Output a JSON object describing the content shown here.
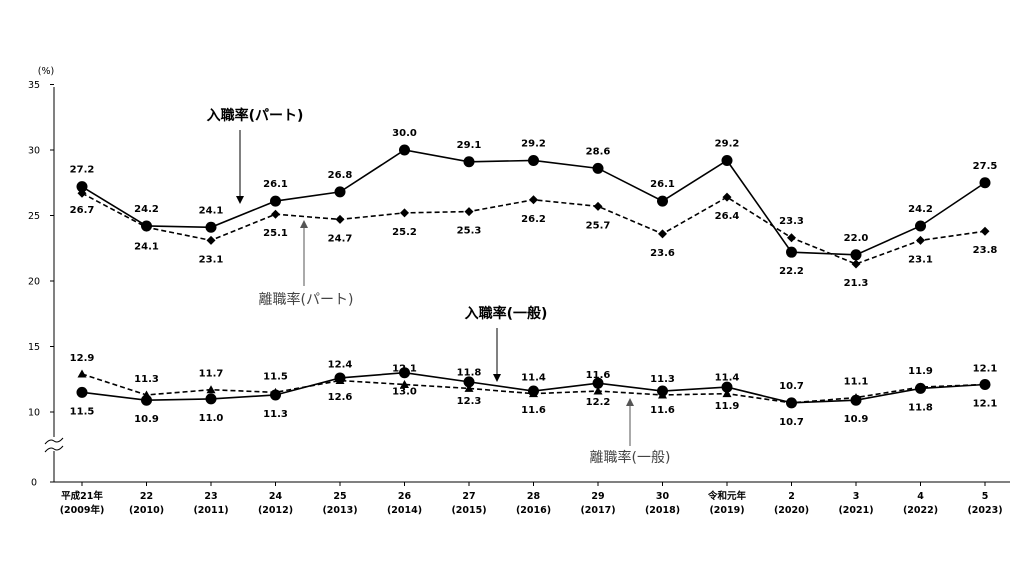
{
  "chart_data": {
    "type": "line",
    "unit_label": "(%)",
    "ylim": [
      0,
      35
    ],
    "yticks": [
      "0",
      "10",
      "15",
      "20",
      "25",
      "30",
      "35"
    ],
    "axis_break": "between 0 and 10",
    "grid": false,
    "categories": [
      [
        "平成21年",
        "(2009年)"
      ],
      [
        "22",
        "(2010)"
      ],
      [
        "23",
        "(2011)"
      ],
      [
        "24",
        "(2012)"
      ],
      [
        "25",
        "(2013)"
      ],
      [
        "26",
        "(2014)"
      ],
      [
        "27",
        "(2015)"
      ],
      [
        "28",
        "(2016)"
      ],
      [
        "29",
        "(2017)"
      ],
      [
        "30",
        "(2018)"
      ],
      [
        "令和元年",
        "(2019)"
      ],
      [
        "2",
        "(2020)"
      ],
      [
        "3",
        "(2021)"
      ],
      [
        "4",
        "(2022)"
      ],
      [
        "5",
        "(2023)"
      ]
    ],
    "series": [
      {
        "name": "入職率(パート)",
        "style": "solid-circle",
        "values": [
          27.2,
          24.2,
          24.1,
          26.1,
          26.8,
          30.0,
          29.1,
          29.2,
          28.6,
          26.1,
          29.2,
          22.2,
          22.0,
          24.2,
          27.5
        ],
        "labels": [
          "27.2",
          "24.2",
          "24.1",
          "26.1",
          "26.8",
          "30.0",
          "29.1",
          "29.2",
          "28.6",
          "26.1",
          "29.2",
          "22.2",
          "22.0",
          "24.2",
          "27.5"
        ]
      },
      {
        "name": "離職率(パート)",
        "style": "dashed-diamond",
        "values": [
          26.7,
          24.1,
          23.1,
          25.1,
          24.7,
          25.2,
          25.3,
          26.2,
          25.7,
          23.6,
          26.4,
          23.3,
          21.3,
          23.1,
          23.8
        ],
        "labels": [
          "26.7",
          "24.1",
          "23.1",
          "25.1",
          "24.7",
          "25.2",
          "25.3",
          "26.2",
          "25.7",
          "23.6",
          "26.4",
          "23.3",
          "21.3",
          "23.1",
          "23.8"
        ]
      },
      {
        "name": "入職率(一般)",
        "style": "solid-circle",
        "values": [
          11.5,
          10.9,
          11.0,
          11.3,
          12.6,
          13.0,
          12.3,
          11.6,
          12.2,
          11.6,
          11.9,
          10.7,
          10.9,
          11.8,
          12.1
        ],
        "labels": [
          "11.5",
          "10.9",
          "11.0",
          "11.3",
          "12.6",
          "13.0",
          "12.3",
          "11.6",
          "12.2",
          "11.6",
          "11.9",
          "10.7",
          "10.9",
          "11.8",
          "12.1"
        ]
      },
      {
        "name": "離職率(一般)",
        "style": "dashed-triangle",
        "values": [
          12.9,
          11.3,
          11.7,
          11.5,
          12.4,
          12.1,
          11.8,
          11.4,
          11.6,
          11.3,
          11.4,
          10.7,
          11.1,
          11.9,
          12.1
        ],
        "labels": [
          "12.9",
          "11.3",
          "11.7",
          "11.5",
          "12.4",
          "12.1",
          "11.8",
          "11.4",
          "11.6",
          "11.3",
          "11.4",
          "10.7",
          "11.1",
          "11.9",
          "12.1"
        ]
      }
    ],
    "annotations": [
      {
        "text": "入職率(パート)",
        "style": "dark"
      },
      {
        "text": "離職率(パート)",
        "style": "grey"
      },
      {
        "text": "入職率(一般)",
        "style": "dark"
      },
      {
        "text": "離職率(一般)",
        "style": "grey"
      }
    ]
  }
}
